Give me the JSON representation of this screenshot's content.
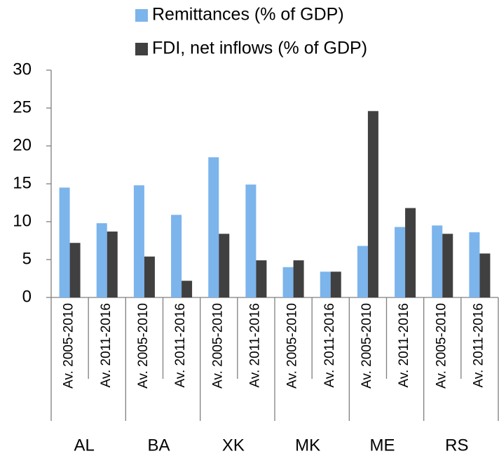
{
  "chart_data": {
    "type": "bar",
    "categories": [
      "Av. 2005-2010",
      "Av. 2011-2016",
      "Av. 2005-2010",
      "Av. 2011-2016",
      "Av. 2005-2010",
      "Av. 2011-2016",
      "Av. 2005-2010",
      "Av. 2011-2016",
      "Av. 2005-2010",
      "Av. 2011-2016",
      "Av. 2005-2010",
      "Av. 2011-2016"
    ],
    "category_groups": [
      "AL",
      "BA",
      "XK",
      "MK",
      "ME",
      "RS"
    ],
    "series": [
      {
        "name": "Remittances (% of GDP)",
        "color": "#7cb4ec",
        "values": [
          14.5,
          9.8,
          14.8,
          10.9,
          18.5,
          14.9,
          4.0,
          3.4,
          6.8,
          9.3,
          9.5,
          8.6
        ]
      },
      {
        "name": "FDI, net inflows (% of GDP)",
        "color": "#404040",
        "values": [
          7.2,
          8.7,
          5.4,
          2.2,
          8.4,
          4.9,
          4.9,
          3.4,
          24.6,
          11.8,
          8.4,
          5.8
        ]
      }
    ],
    "ylim": [
      0,
      30
    ],
    "yticks": [
      0,
      5,
      10,
      15,
      20,
      25,
      30
    ],
    "grid": false
  }
}
